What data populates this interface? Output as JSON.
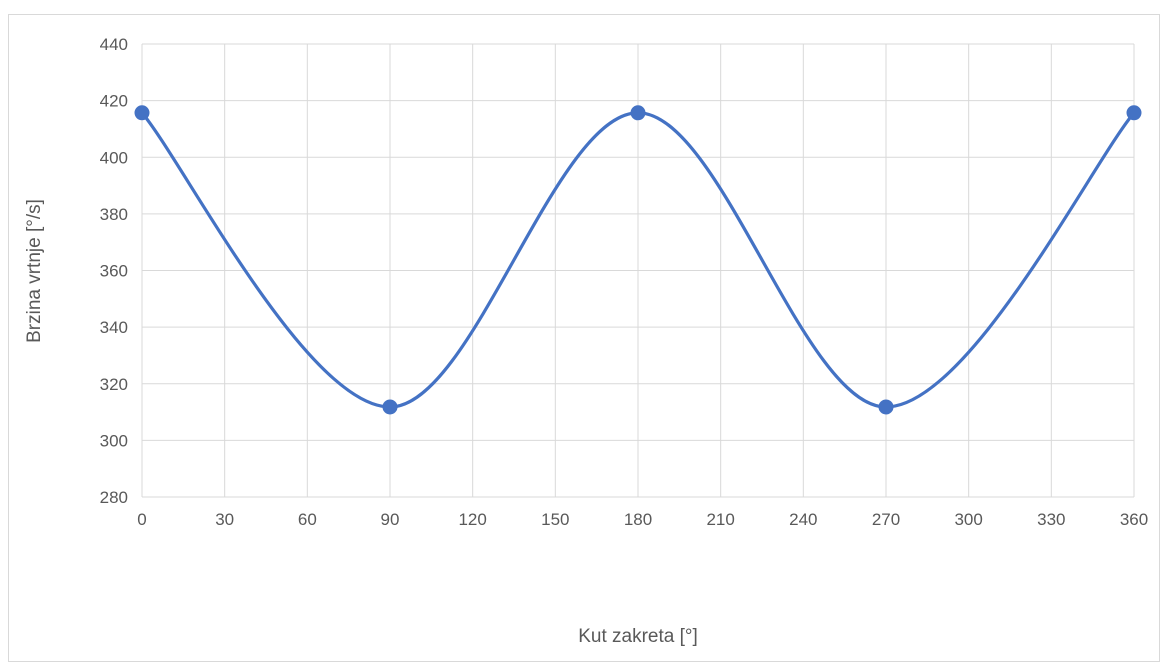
{
  "chart_data": {
    "type": "line",
    "title": "",
    "xlabel": "Kut zakreta [°]",
    "ylabel": "Brzina vrtnje [°/s]",
    "xlim": [
      0,
      360
    ],
    "ylim": [
      280,
      440
    ],
    "x_ticks": [
      0,
      30,
      60,
      90,
      120,
      150,
      180,
      210,
      240,
      270,
      300,
      330,
      360
    ],
    "y_ticks": [
      280,
      300,
      320,
      340,
      360,
      380,
      400,
      420,
      440
    ],
    "grid": true,
    "smooth": true,
    "legend": "none",
    "series": [
      {
        "x": [
          0,
          90,
          180,
          270,
          360
        ],
        "y": [
          415.7,
          311.8,
          415.7,
          311.8,
          415.7
        ],
        "color": "#4472c4",
        "markers": true
      }
    ]
  }
}
